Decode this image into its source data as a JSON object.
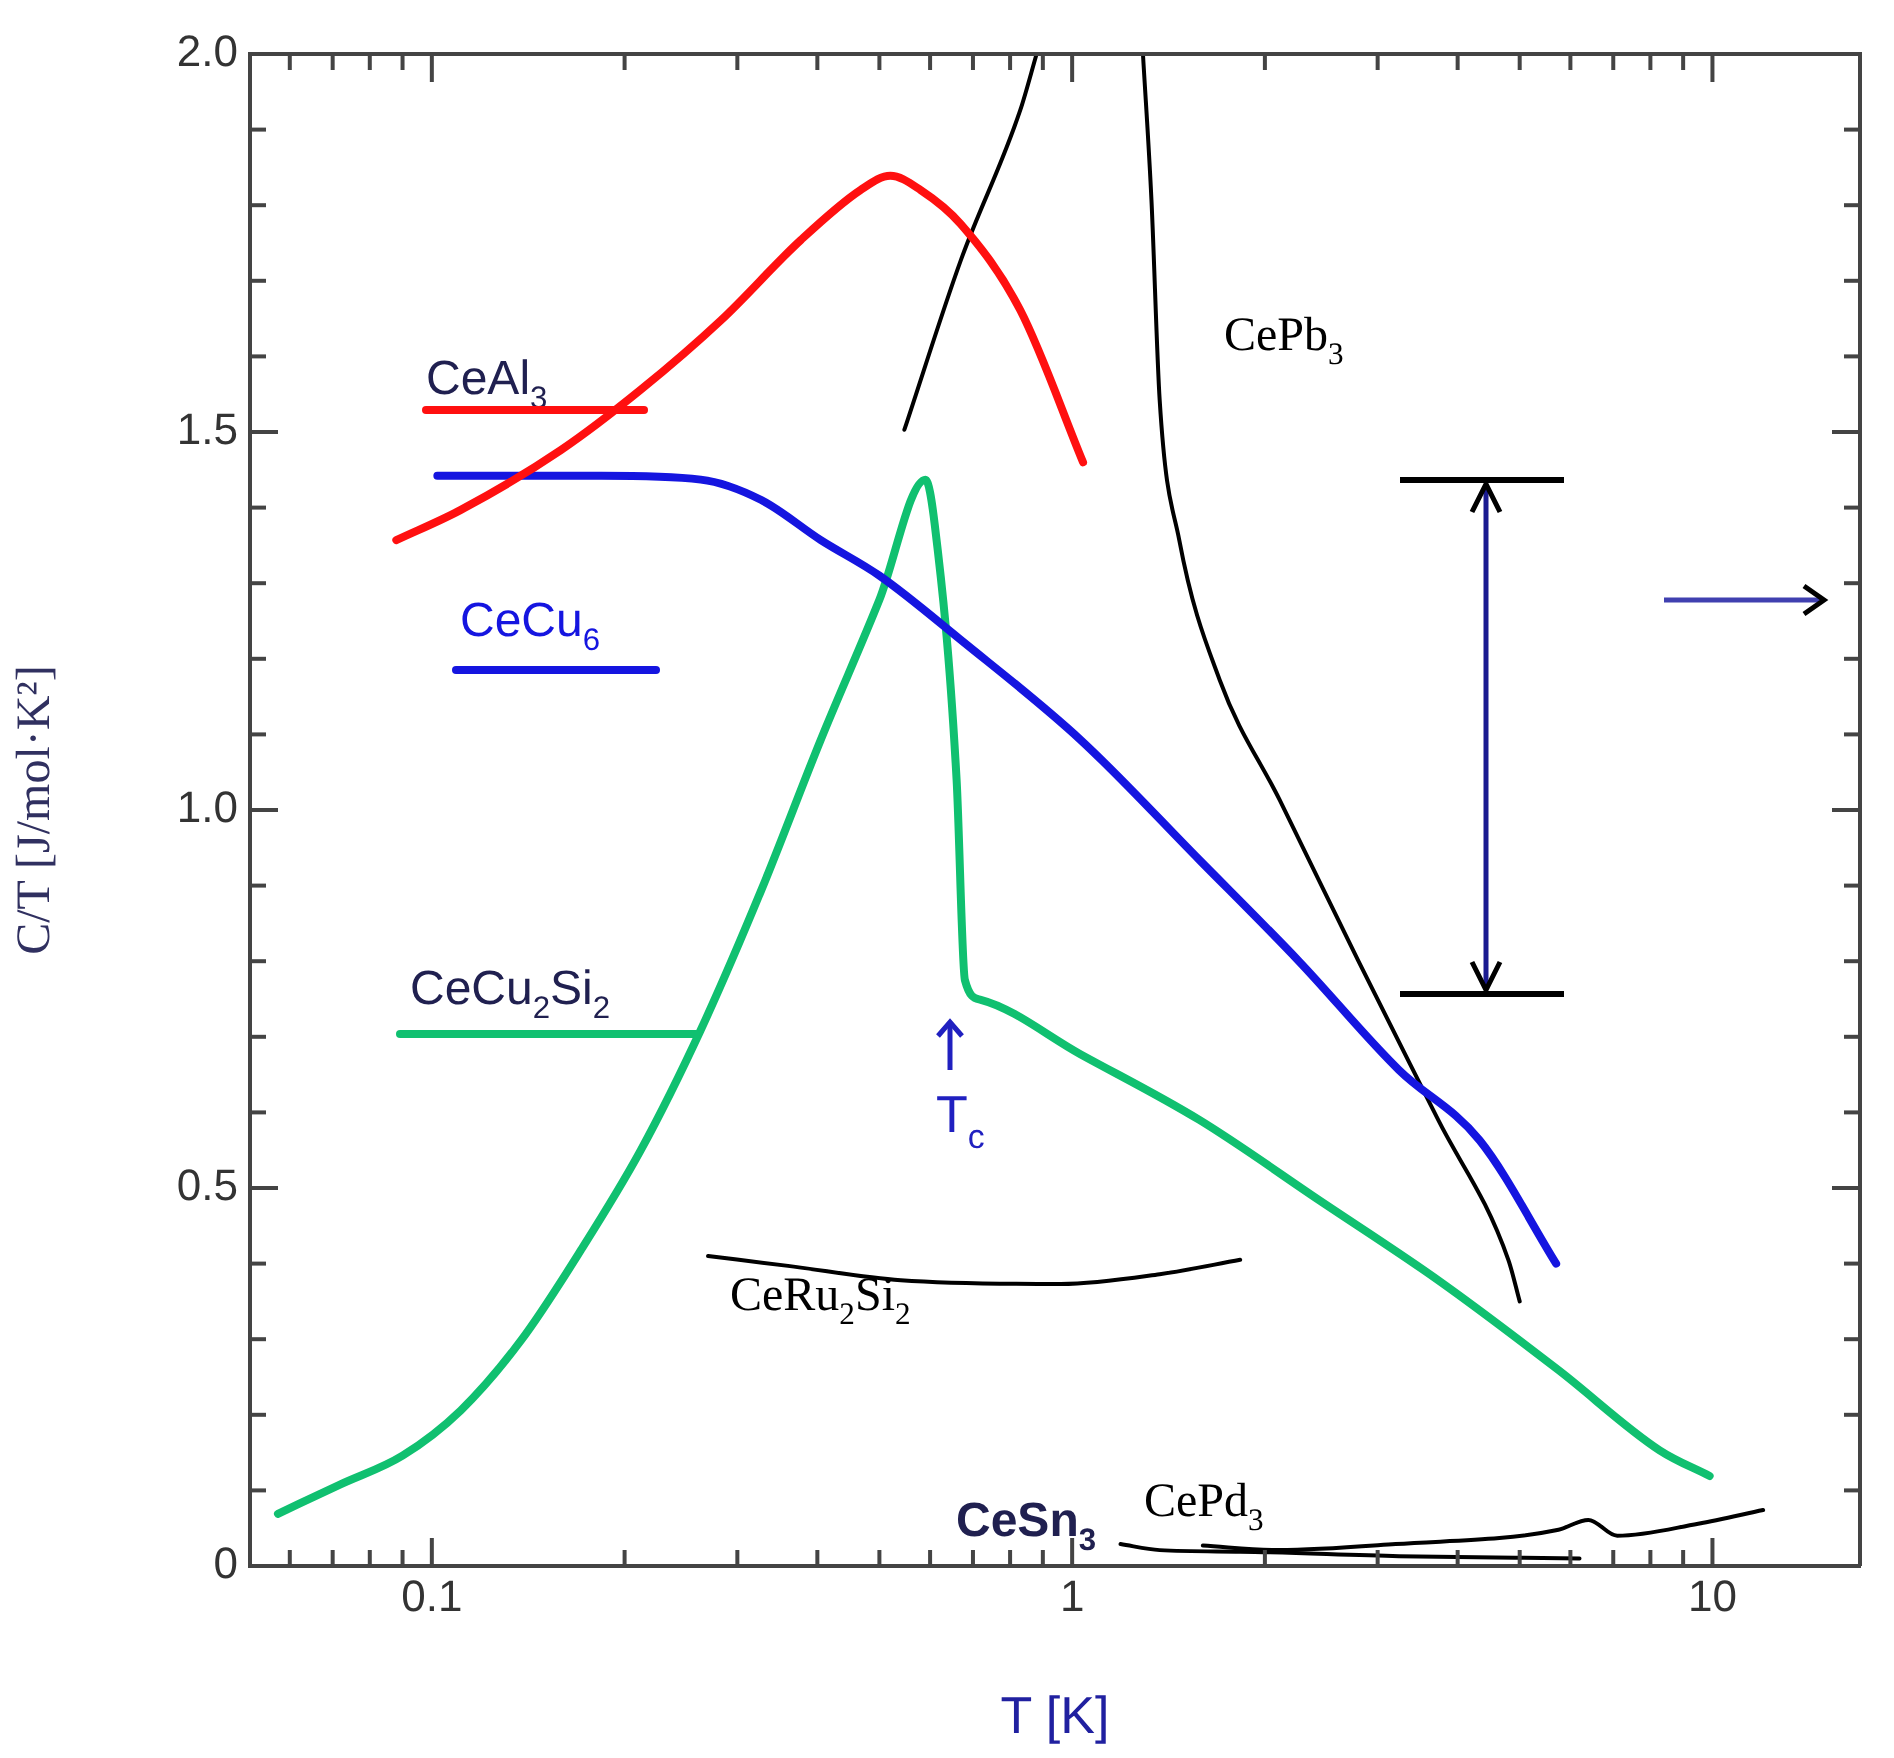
{
  "chart_data": {
    "type": "line",
    "xlabel": "T [K]",
    "ylabel": "C/T [J/mol·K²]",
    "log": "x",
    "grid": false,
    "legend": false,
    "marker": "none",
    "line_style": "solid",
    "xlim": [
      0.052,
      17
    ],
    "ylim": [
      0,
      2
    ],
    "xticks": [
      {
        "value": 0.06,
        "label": null
      },
      {
        "value": 0.07,
        "label": null
      },
      {
        "value": 0.08,
        "label": null
      },
      {
        "value": 0.09,
        "label": null
      },
      0.1,
      {
        "value": 0.2,
        "label": null
      },
      {
        "value": 0.3,
        "label": null
      },
      {
        "value": 0.4,
        "label": null
      },
      {
        "value": 0.5,
        "label": null
      },
      {
        "value": 0.6,
        "label": null
      },
      {
        "value": 0.7,
        "label": null
      },
      {
        "value": 0.8,
        "label": null
      },
      {
        "value": 0.9,
        "label": null
      },
      1,
      {
        "value": 2,
        "label": null
      },
      {
        "value": 3,
        "label": null
      },
      {
        "value": 4,
        "label": null
      },
      {
        "value": 5,
        "label": null
      },
      {
        "value": 6,
        "label": null
      },
      {
        "value": 7,
        "label": null
      },
      {
        "value": 8,
        "label": null
      },
      {
        "value": 9,
        "label": null
      },
      10
    ],
    "yticks": [
      0,
      {
        "value": 0.1,
        "label": null
      },
      {
        "value": 0.2,
        "label": null
      },
      {
        "value": 0.3,
        "label": null
      },
      {
        "value": 0.4,
        "label": null
      },
      0.5,
      {
        "value": 0.6,
        "label": null
      },
      {
        "value": 0.7,
        "label": null
      },
      {
        "value": 0.8,
        "label": null
      },
      {
        "value": 0.9,
        "label": null
      },
      {
        "value": 1,
        "label": "1.0"
      },
      {
        "value": 1.1,
        "label": null
      },
      {
        "value": 1.2,
        "label": null
      },
      {
        "value": 1.3,
        "label": null
      },
      {
        "value": 1.4,
        "label": null
      },
      1.5,
      {
        "value": 1.6,
        "label": null
      },
      {
        "value": 1.7,
        "label": null
      },
      {
        "value": 1.8,
        "label": null
      },
      {
        "value": 1.9,
        "label": null
      },
      {
        "value": 2,
        "label": "2.0"
      }
    ],
    "annotations": [
      "T$_{c}$"
    ],
    "series": [
      {
        "name": "CeAl$_{3}$",
        "color": "#ff1010",
        "x": [
          0.088,
          0.111,
          0.159,
          0.212,
          0.283,
          0.377,
          0.467,
          0.52,
          0.58,
          0.67,
          0.83,
          1.04
        ],
        "values": [
          1.357,
          1.397,
          1.476,
          1.556,
          1.648,
          1.754,
          1.82,
          1.839,
          1.82,
          1.775,
          1.661,
          1.46
        ]
      },
      {
        "name": "CeCu$_{6}$",
        "color": "#1515e0",
        "x": [
          0.102,
          0.184,
          0.263,
          0.327,
          0.405,
          0.5,
          0.67,
          1.03,
          1.58,
          2.26,
          3.24,
          4.33,
          5.7
        ],
        "values": [
          1.442,
          1.442,
          1.437,
          1.41,
          1.357,
          1.31,
          1.225,
          1.093,
          0.934,
          0.8,
          0.656,
          0.563,
          0.4
        ]
      },
      {
        "name": "CeCu$_{2}$Si$_{2}$",
        "color": "#10c070",
        "x": [
          0.0575,
          0.072,
          0.09,
          0.111,
          0.138,
          0.171,
          0.212,
          0.263,
          0.327,
          0.405,
          0.5,
          0.59,
          0.61,
          0.66,
          0.68,
          0.72,
          1.03,
          1.58,
          2.43,
          3.73,
          5.75,
          8.27,
          9.9
        ],
        "values": [
          0.069,
          0.108,
          0.146,
          0.206,
          0.299,
          0.418,
          0.55,
          0.709,
          0.894,
          1.093,
          1.278,
          1.437,
          1.378,
          1.04,
          0.775,
          0.749,
          0.677,
          0.59,
          0.484,
          0.378,
          0.259,
          0.153,
          0.119
        ]
      },
      {
        "name": "CePb$_{3}$",
        "color": "#000000",
        "x": [
          0.547,
          0.67,
          0.83,
          0.88,
          1.0,
          1.29,
          1.33,
          1.37,
          1.47,
          1.7,
          2.11,
          2.8,
          3.73,
          4.8,
          5.0
        ],
        "values": [
          1.503,
          1.727,
          1.926,
          2.0,
          null,
          2.0,
          1.807,
          1.542,
          1.357,
          1.172,
          1.013,
          0.8,
          0.59,
          0.405,
          0.35
        ]
      },
      {
        "name": "CeRu$_{2}$Si$_{2}$",
        "color": "#000000",
        "x": [
          0.27,
          0.36,
          0.54,
          0.96,
          1.37,
          1.83
        ],
        "values": [
          0.41,
          0.397,
          0.378,
          0.373,
          0.386,
          0.405
        ]
      },
      {
        "name": "CePd$_{3}$",
        "color": "#000000",
        "x": [
          1.6,
          2.1,
          3.2,
          5.75,
          6.4,
          7.1,
          9.5,
          12
        ],
        "values": [
          0.027,
          0.021,
          0.029,
          0.048,
          0.061,
          0.04,
          0.056,
          0.074
        ]
      },
      {
        "name": "CeSn$_{3}$",
        "color": "#000000",
        "x": [
          1.19,
          1.37,
          1.83,
          3.24,
          6.2
        ],
        "values": [
          0.029,
          0.021,
          0.019,
          0.013,
          0.01
        ]
      }
    ]
  }
}
